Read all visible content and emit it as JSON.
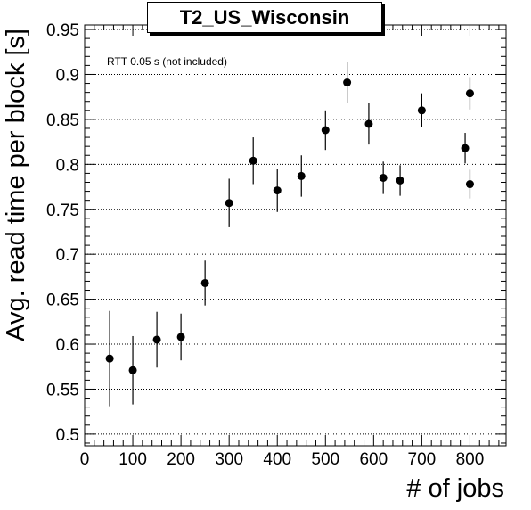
{
  "chart_data": {
    "type": "scatter",
    "title": "T2_US_Wisconsin",
    "xlabel": "# of jobs",
    "ylabel": "Avg. read time per block [s]",
    "annotation": "RTT 0.05 s (not included)",
    "xlim": [
      0,
      875
    ],
    "ylim": [
      0.487,
      0.955
    ],
    "x_ticks": [
      0,
      100,
      200,
      300,
      400,
      500,
      600,
      700,
      800
    ],
    "x_tick_labels": [
      "0",
      "100",
      "200",
      "300",
      "400",
      "500",
      "600",
      "700",
      "800"
    ],
    "y_ticks": [
      0.5,
      0.55,
      0.6,
      0.65,
      0.7,
      0.75,
      0.8,
      0.85,
      0.9,
      0.95
    ],
    "y_tick_labels": [
      "0.5",
      "0.55",
      "0.6",
      "0.65",
      "0.7",
      "0.75",
      "0.8",
      "0.85",
      "0.9",
      "0.95"
    ],
    "grid": "horizontal dotted",
    "marker_color": "#000000",
    "points": [
      {
        "x": 52,
        "y": 0.584,
        "err": 0.053
      },
      {
        "x": 100,
        "y": 0.571,
        "err": 0.038
      },
      {
        "x": 150,
        "y": 0.605,
        "err": 0.031
      },
      {
        "x": 200,
        "y": 0.608,
        "err": 0.026
      },
      {
        "x": 250,
        "y": 0.668,
        "err": 0.025
      },
      {
        "x": 300,
        "y": 0.757,
        "err": 0.027
      },
      {
        "x": 350,
        "y": 0.804,
        "err": 0.026
      },
      {
        "x": 400,
        "y": 0.771,
        "err": 0.024
      },
      {
        "x": 450,
        "y": 0.787,
        "err": 0.023
      },
      {
        "x": 500,
        "y": 0.838,
        "err": 0.022
      },
      {
        "x": 545,
        "y": 0.891,
        "err": 0.023
      },
      {
        "x": 590,
        "y": 0.845,
        "err": 0.023
      },
      {
        "x": 620,
        "y": 0.785,
        "err": 0.018
      },
      {
        "x": 655,
        "y": 0.782,
        "err": 0.017
      },
      {
        "x": 700,
        "y": 0.86,
        "err": 0.019
      },
      {
        "x": 790,
        "y": 0.818,
        "err": 0.017
      },
      {
        "x": 800,
        "y": 0.879,
        "err": 0.018
      },
      {
        "x": 800,
        "y": 0.778,
        "err": 0.016
      }
    ]
  }
}
